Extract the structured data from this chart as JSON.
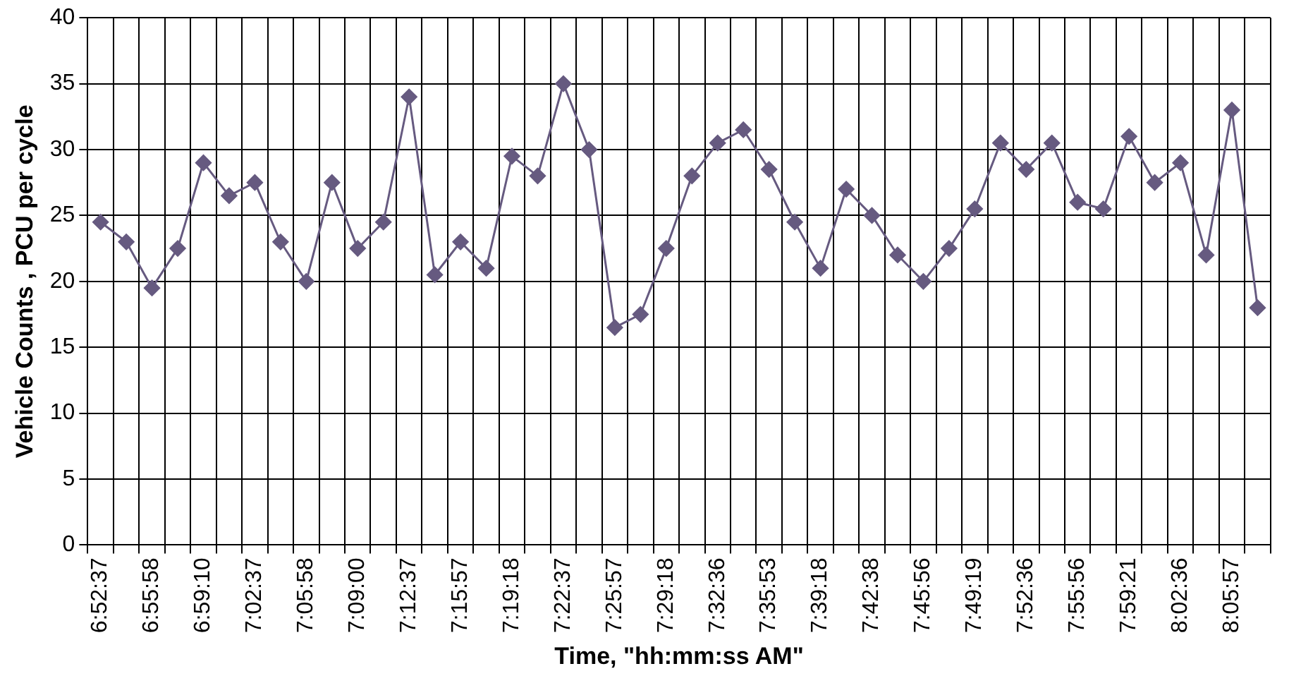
{
  "chart_data": {
    "type": "line",
    "xlabel": "Time, \"hh:mm:ss AM\"",
    "ylabel": "Vehicle Counts , PCU per cycle",
    "categories": [
      "6:52:37",
      null,
      "6:55:58",
      null,
      "6:59:10",
      null,
      "7:02:37",
      null,
      "7:05:58",
      null,
      "7:09:00",
      null,
      "7:12:37",
      null,
      "7:15:57",
      null,
      "7:19:18",
      null,
      "7:22:37",
      null,
      "7:25:57",
      null,
      "7:29:18",
      null,
      "7:32:36",
      null,
      "7:35:53",
      null,
      "7:39:18",
      null,
      "7:42:38",
      null,
      "7:45:56",
      null,
      "7:49:19",
      null,
      "7:52:36",
      null,
      "7:55:56",
      null,
      "7:59:21",
      null,
      "8:02:36",
      null,
      "8:05:57",
      null
    ],
    "series": [
      {
        "color": "#665a80",
        "values": [
          24.5,
          23,
          19.5,
          22.5,
          29,
          26.5,
          27.5,
          23,
          20,
          27.5,
          22.5,
          24.5,
          34,
          20.5,
          23,
          21,
          29.5,
          28,
          35,
          30,
          16.5,
          17.5,
          22.5,
          28,
          30.5,
          31.5,
          28.5,
          24.5,
          21,
          27,
          25,
          22,
          20,
          22.5,
          25.5,
          30.5,
          28.5,
          30.5,
          26,
          25.5,
          31,
          27.5,
          29,
          22,
          33,
          18
        ]
      }
    ],
    "ylim": [
      0,
      40
    ],
    "yticks": [
      0,
      5,
      10,
      15,
      20,
      25,
      30,
      35,
      40
    ],
    "grid": true,
    "marker": "diamond",
    "line_style": "solid",
    "legend": false
  }
}
